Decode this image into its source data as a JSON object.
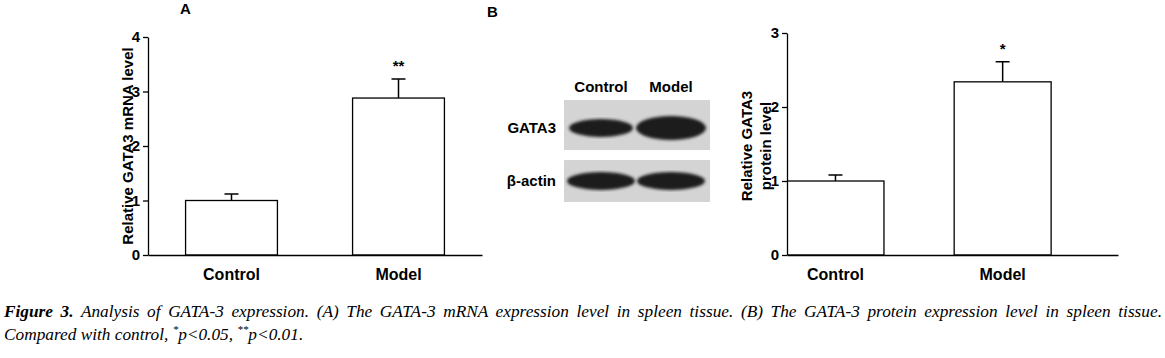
{
  "chart_data": [
    {
      "type": "bar",
      "categories": [
        "Control",
        "Model"
      ],
      "values": [
        1.0,
        2.88
      ],
      "errors": [
        0.12,
        0.35
      ],
      "color": "#ffffff",
      "ylabel": "Relative GATA3 mRNA level",
      "ylim": [
        0,
        4
      ],
      "yticks": [
        0,
        1,
        2,
        3,
        4
      ],
      "annotations": [
        {
          "text": "**",
          "category": "Model"
        }
      ]
    },
    {
      "type": "bar",
      "categories": [
        "Control",
        "Model"
      ],
      "values": [
        1.0,
        2.34
      ],
      "errors": [
        0.08,
        0.27
      ],
      "color": "#ffffff",
      "ylabel": "Relative GATA3\nprotein level",
      "ylim": [
        0,
        3
      ],
      "yticks": [
        0,
        1,
        2,
        3
      ],
      "annotations": [
        {
          "text": "*",
          "category": "Model"
        }
      ]
    }
  ],
  "panel_labels": [
    "A",
    "B"
  ],
  "blot": {
    "lanes": [
      "Control",
      "Model"
    ],
    "rows": [
      "GATA3",
      "β-actin"
    ]
  },
  "caption": {
    "label": "Figure 3.",
    "text": "Analysis of GATA-3 expression. (A) The GATA-3 mRNA expression level in spleen tissue. (B) The GATA-3 protein expression level in spleen tissue. Compared with control, ",
    "notes": [
      {
        "mark": "*",
        "text": "p<0.05, "
      },
      {
        "mark": "**",
        "text": "p<0.01."
      }
    ]
  }
}
